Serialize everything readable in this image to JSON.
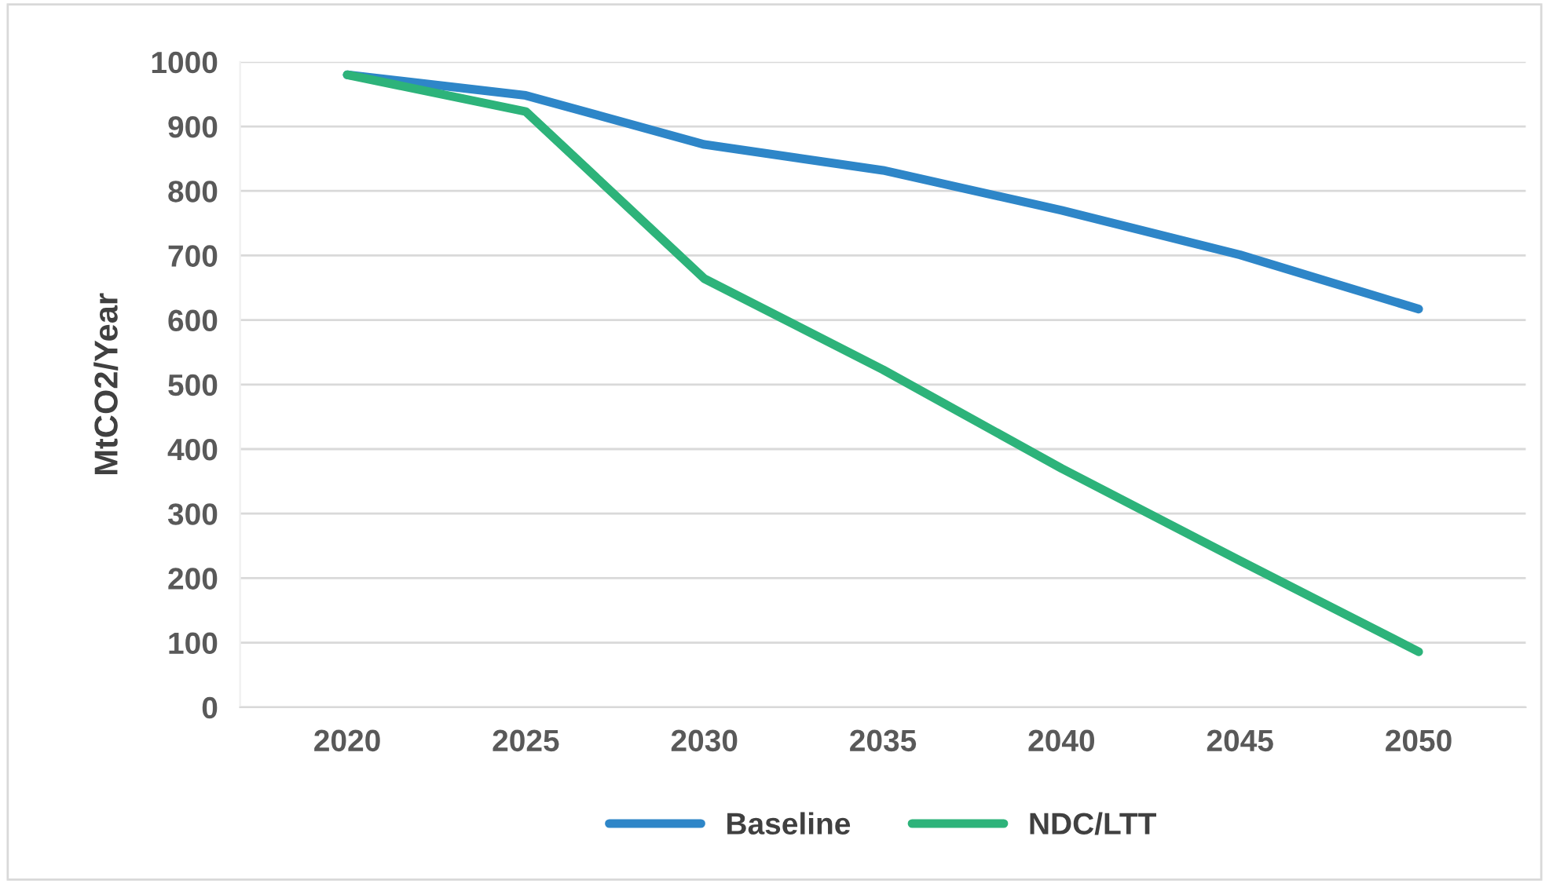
{
  "chart_data": {
    "type": "line",
    "ylabel": "MtCO2/Year",
    "categories": [
      "2020",
      "2025",
      "2030",
      "2035",
      "2040",
      "2045",
      "2050"
    ],
    "series": [
      {
        "name": "Baseline",
        "color": "#2e86c8",
        "values": [
          980,
          948,
          872,
          832,
          770,
          701,
          617
        ]
      },
      {
        "name": "NDC/LTT",
        "color": "#2db37a",
        "values": [
          980,
          923,
          664,
          523,
          370,
          227,
          86
        ]
      }
    ],
    "ylim": [
      0,
      1000
    ],
    "yticks": [
      0,
      100,
      200,
      300,
      400,
      500,
      600,
      700,
      800,
      900,
      1000
    ],
    "grid": "y",
    "legend": "bottom",
    "marker": "none",
    "line_style": "solid"
  }
}
